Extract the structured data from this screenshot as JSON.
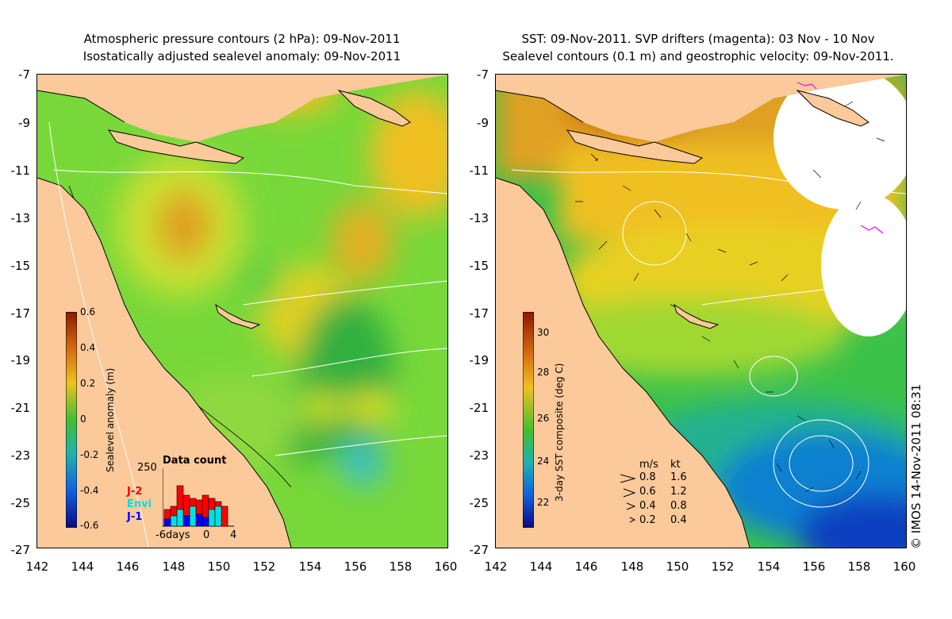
{
  "left_panel": {
    "title_line1": "Atmospheric pressure contours (2 hPa): 09-Nov-2011",
    "title_line2": "Isostatically adjusted sealevel anomaly: 09-Nov-2011",
    "colorbar": {
      "label": "Sealevel anomaly (m)",
      "ticks": [
        "0.6",
        "0.4",
        "0.2",
        "0",
        "-0.2",
        "-0.4",
        "-0.6"
      ]
    },
    "data_count": {
      "title": "Data count",
      "ymax_label": "250",
      "xlabel_left": "-6days",
      "xlabel_mid": "0",
      "xlabel_right": "4",
      "legend": [
        {
          "label": "J-2",
          "color": "#ff0000"
        },
        {
          "label": "Envi",
          "color": "#00e0e0"
        },
        {
          "label": "J-1",
          "color": "#0000ff"
        }
      ]
    }
  },
  "right_panel": {
    "title_line1": "SST: 09-Nov-2011. SVP drifters (magenta): 03 Nov - 10 Nov",
    "title_line2": "Sealevel contours (0.1 m) and geostrophic velocity: 09-Nov-2011.",
    "colorbar": {
      "label": "3-day SST composite (deg C)",
      "ticks": [
        "30",
        "28",
        "26",
        "24",
        "22"
      ]
    },
    "velocity_legend": {
      "header_ms": "m/s",
      "header_kt": "kt",
      "rows": [
        {
          "ms": "0.8",
          "kt": "1.6"
        },
        {
          "ms": "0.6",
          "kt": "1.2"
        },
        {
          "ms": "0.4",
          "kt": "0.8"
        },
        {
          "ms": "0.2",
          "kt": "0.4"
        }
      ]
    }
  },
  "axes": {
    "y_ticks": [
      "-7",
      "-9",
      "-11",
      "-13",
      "-15",
      "-17",
      "-19",
      "-21",
      "-23",
      "-25",
      "-27"
    ],
    "x_ticks": [
      "142",
      "144",
      "146",
      "148",
      "150",
      "152",
      "154",
      "156",
      "158",
      "160"
    ]
  },
  "credit": "© IMOS 14-Nov-2011 08:31",
  "colors": {
    "land": "#fbc99a",
    "sla_high": "#b04000",
    "sla_mid": "#5ad22a",
    "sla_low": "#0a18a0",
    "sst_warm": "#e07a10",
    "sst_mid": "#3cc24a",
    "sst_cool": "#1060d0"
  }
}
